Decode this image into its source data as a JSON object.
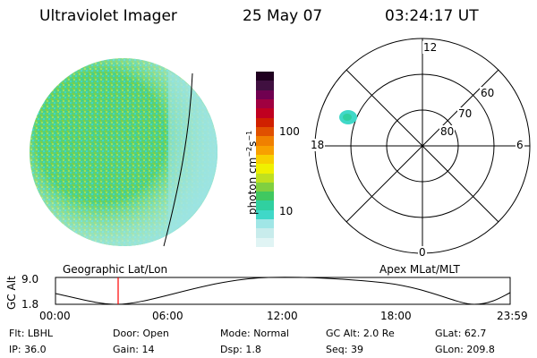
{
  "header": {
    "instrument": "Ultraviolet Imager",
    "date": "25 May 07",
    "time": "03:24:17 UT"
  },
  "left_panel": {
    "label": "Geographic Lat/Lon"
  },
  "right_panel": {
    "label": "Apex MLat/MLT",
    "mlt_labels": [
      "12",
      "18",
      "6",
      "0"
    ],
    "lat_labels": [
      "60",
      "70",
      "80"
    ]
  },
  "colorbar": {
    "unit": "photon cm",
    "unit_sup1": "−2",
    "unit_mid": "s",
    "unit_sup2": "−1",
    "ticks": [
      "100",
      "10"
    ],
    "colors": [
      "#e0f4f4",
      "#c8ecec",
      "#a0e6e6",
      "#40d8c8",
      "#30d0a0",
      "#40c860",
      "#80d040",
      "#c0e020",
      "#f0f000",
      "#f8d000",
      "#f8a000",
      "#f08000",
      "#e05000",
      "#d02000",
      "#c00020",
      "#a00040",
      "#700050",
      "#401040",
      "#200020"
    ]
  },
  "altitude_plot": {
    "ylabel": "GC Alt",
    "yticks": [
      "9.0",
      "1.8"
    ],
    "xticks": [
      "00:00",
      "06:00",
      "12:00",
      "18:00",
      "23:59"
    ],
    "marker_color": "#ff0000"
  },
  "status": {
    "flt_label": "Flt:",
    "flt": "LBHL",
    "door_label": "Door:",
    "door": "Open",
    "mode_label": "Mode:",
    "mode": "Normal",
    "gcalt_label": "GC Alt:",
    "gcalt": "2.0 Re",
    "glat_label": "GLat:",
    "glat": "62.7",
    "ip_label": "IP:",
    "ip": "36.0",
    "gain_label": "Gain:",
    "gain": "14",
    "dsp_label": "Dsp:",
    "dsp": "1.8",
    "seq_label": "Seq:",
    "seq": "39",
    "glon_label": "GLon:",
    "glon": "209.8"
  }
}
